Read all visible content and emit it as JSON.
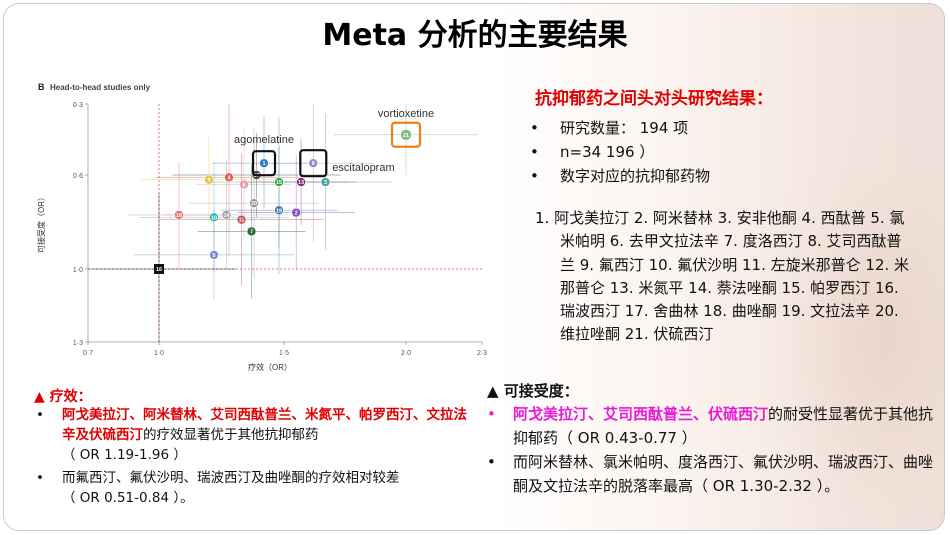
{
  "slide": {
    "title": "Meta 分析的主要结果"
  },
  "chart_data": {
    "type": "scatter",
    "panel_label": "B",
    "title": "Head-to-head studies only",
    "xlabel": "疗效（OR）",
    "ylabel": "可接受度（OR）",
    "x_ticks": [
      "0·7",
      "1·0",
      "1·5",
      "2·0",
      "2·3"
    ],
    "y_ticks": [
      "0·3",
      "0·6",
      "1·0",
      "1·3"
    ],
    "xlim": [
      0.7,
      2.3
    ],
    "ylim": [
      0.3,
      1.3
    ],
    "points": [
      {
        "id": "1",
        "x": 1.42,
        "y": 0.55,
        "color": "#2d7bc0",
        "label": "agomelatine"
      },
      {
        "id": "8",
        "x": 1.62,
        "y": 0.55,
        "color": "#9c86c4",
        "label": "escitalopram"
      },
      {
        "id": "21",
        "x": 2.0,
        "y": 0.43,
        "color": "#7dbd7d",
        "label": "vortioxetine"
      },
      {
        "id": "9",
        "x": 1.2,
        "y": 0.62,
        "color": "#e3c54a",
        "label": ""
      },
      {
        "id": "4",
        "x": 1.28,
        "y": 0.61,
        "color": "#e0605c",
        "label": ""
      },
      {
        "id": "6",
        "x": 1.34,
        "y": 0.64,
        "color": "#e49ab0",
        "label": ""
      },
      {
        "id": "17",
        "x": 1.39,
        "y": 0.6,
        "color": "#444444",
        "label": ""
      },
      {
        "id": "15",
        "x": 1.48,
        "y": 0.63,
        "color": "#2aa84a",
        "label": ""
      },
      {
        "id": "13",
        "x": 1.57,
        "y": 0.63,
        "color": "#8a2b7a",
        "label": ""
      },
      {
        "id": "3",
        "x": 1.67,
        "y": 0.63,
        "color": "#4aa0a0",
        "label": ""
      },
      {
        "id": "20",
        "x": 1.38,
        "y": 0.72,
        "color": "#9a9a9a",
        "label": ""
      },
      {
        "id": "19",
        "x": 1.48,
        "y": 0.75,
        "color": "#4a7ab0",
        "label": ""
      },
      {
        "id": "2",
        "x": 1.55,
        "y": 0.76,
        "color": "#8a4fc0",
        "label": ""
      },
      {
        "id": "18",
        "x": 1.08,
        "y": 0.77,
        "color": "#e3706c",
        "label": ""
      },
      {
        "id": "10",
        "x": 1.22,
        "y": 0.78,
        "color": "#3ab0b0",
        "label": ""
      },
      {
        "id": "14",
        "x": 1.27,
        "y": 0.77,
        "color": "#a0a0a0",
        "label": ""
      },
      {
        "id": "11",
        "x": 1.33,
        "y": 0.79,
        "color": "#c0504d",
        "label": ""
      },
      {
        "id": "7",
        "x": 1.37,
        "y": 0.84,
        "color": "#2a6b3a",
        "label": ""
      },
      {
        "id": "5",
        "x": 1.22,
        "y": 0.94,
        "color": "#7a8fc8",
        "label": ""
      },
      {
        "id": "16",
        "x": 1.0,
        "y": 1.0,
        "color": "#111111",
        "label": ""
      }
    ],
    "reference_x": 1.0,
    "reference_y": 1.0
  },
  "right_panel": {
    "heading": "抗抑郁药之间头对头研究结果：",
    "bullets": [
      "研究数量： 194 项",
      "n=34 196 ）",
      "数字对应的抗抑郁药物"
    ],
    "drug_list": "1. 阿戈美拉汀  2. 阿米替林  3. 安非他酮  4. 西酞普 5. 氯米帕明  6. 去甲文拉法辛  7. 度洛西汀  8. 艾司西酞普兰  9. 氟西汀  10. 氟伏沙明  11. 左旋米那普仑  12. 米那普仑  13. 米氮平  14. 萘法唑酮  15. 帕罗西汀  16. 瑞波西汀  17. 舍曲林  18. 曲唑酮   19. 文拉法辛  20. 维拉唑酮  21. 伏硫西汀"
  },
  "efficacy": {
    "heading": "▲ 疗效：",
    "item1_highlight": "阿戈美拉汀、阿米替林、艾司西酞普兰、米氮平、帕罗西汀、文拉法辛及伏硫西汀",
    "item1_text": "的疗效显著优于其他抗抑郁药",
    "item1_or": "（ OR 1.19-1.96 ）",
    "item2_text": "而氟西汀、氟伏沙明、瑞波西汀及曲唑酮的疗效相对较差",
    "item2_or": "（ OR 0.51-0.84 ）。"
  },
  "acceptability": {
    "heading": "▲  可接受度：",
    "item1_highlight": "阿戈美拉汀、艾司西酞普兰、伏硫西汀",
    "item1_text": "的耐受性显著优于其他抗抑郁药（ OR 0.43-0.77 ）",
    "item2_text": "而阿米替林、氯米帕明、度洛西汀、氟伏沙明、瑞波西汀、曲唑酮及文拉法辛的脱落率最高（ OR 1.30-2.32 ）。"
  }
}
